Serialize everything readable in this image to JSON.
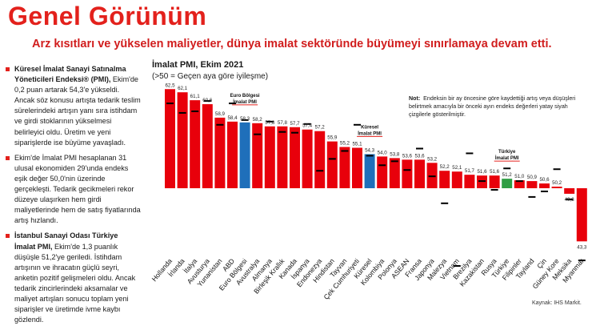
{
  "page": {
    "title": "Genel Görünüm",
    "subtitle": "Arz kısıtları ve yükselen maliyetler, dünya imalat sektöründe büyümeyi sınırlamaya devam etti."
  },
  "bullets": [
    {
      "bold": "Küresel İmalat Sanayi Satınalma Yöneticileri Endeksi® (PMI),",
      "text": " Ekim'de 0,2 puan artarak 54,3'e yükseldi. Ancak söz konusu artışta tedarik teslim sürelerindeki artışın yanı sıra istihdam ve girdi stoklarının yükselmesi belirleyici oldu. Üretim ve yeni siparişlerde ise büyüme yavaşladı."
    },
    {
      "bold": "",
      "text": "Ekim'de İmalat PMI hesaplanan 31 ulusal ekonomiden 29'unda endeks eşik değer 50,0'nin üzerinde gerçekleşti. Tedarik gecikmeleri rekor düzeye ulaşırken hem girdi maliyetlerinde hem de satış fiyatlarında artış hızlandı."
    },
    {
      "bold": "İstanbul Sanayi Odası Türkiye İmalat PMI,",
      "text": " Ekim'de 1,3 puanlık düşüşle 51,2'ye geriledi. İstihdam artışının ve ihracatın güçlü seyri, anketin pozitif gelişmeleri oldu. Ancak tedarik zincirlerindeki aksamalar ve maliyet artışları sonucu toplam yeni siparişler ve üretimde ivme kaybı gözlendi."
    }
  ],
  "note": {
    "label": "Not:",
    "text": "Endeksin bir ay öncesine göre kaydettiği artış veya düşüşleri belirtmek amacıyla bir önceki ayın endeks değerleri yatay siyah çizgilerle gösterilmiştir."
  },
  "source": "Kaynak: IHS Markit.",
  "chart_data": {
    "type": "bar",
    "title": "İmalat PMI, Ekim 2021",
    "subtitle": "(>50 = Geçen aya göre iyileşme)",
    "baseline": 50,
    "ylim": [
      41,
      64
    ],
    "categories": [
      "Hollanda",
      "İrlanda",
      "İtalya",
      "Avusturya",
      "Yunanistan",
      "ABD",
      "Euro Bölgesi",
      "Avustralya",
      "Almanya",
      "Birleşik Krallık",
      "Kanada",
      "İspanya",
      "Endonezya",
      "Hindistan",
      "Tayvan",
      "Çek Cumhuriyeti",
      "Küresel",
      "Kolombiya",
      "Polonya",
      "ASEAN",
      "Fransa",
      "Japonya",
      "Malezya",
      "Vietnam",
      "Brezilya",
      "Kazakistan",
      "Rusya",
      "Türkiye",
      "Filipinler",
      "Tayland",
      "Çin",
      "Güney Kore",
      "Meksika",
      "Myanmar"
    ],
    "values": [
      62.5,
      62.1,
      61.1,
      60.6,
      58.9,
      58.4,
      58.3,
      58.2,
      57.8,
      57.8,
      57.7,
      57.4,
      57.2,
      55.9,
      55.2,
      55.1,
      54.3,
      54.0,
      53.8,
      53.6,
      53.6,
      53.2,
      52.2,
      52.1,
      51.7,
      51.6,
      51.6,
      51.2,
      51.0,
      50.9,
      50.6,
      50.2,
      49.3,
      43.3
    ],
    "value_labels": [
      "62,5",
      "62,1",
      "61,1",
      "60,6",
      "58,9",
      "58,4",
      "58,3",
      "58,2",
      "57,8",
      "57,8",
      "57,7",
      "57,4",
      "57,2",
      "55,9",
      "55,2",
      "55,1",
      "54,3",
      "54,0",
      "53,8",
      "53,6",
      "53,6",
      "53,2",
      "52,2",
      "52,1",
      "51,7",
      "51,6",
      "51,6",
      "51,2",
      "51,0",
      "50,9",
      "50,6",
      "50,2",
      "49,3",
      "43,3"
    ],
    "previous": [
      60.7,
      59.5,
      59.7,
      61.0,
      58.0,
      60.7,
      58.6,
      56.8,
      58.4,
      57.1,
      57.0,
      58.1,
      52.2,
      53.7,
      54.7,
      58.0,
      54.1,
      52.9,
      53.4,
      52.3,
      55.0,
      51.5,
      48.1,
      40.2,
      54.4,
      50.9,
      49.8,
      52.5,
      50.9,
      48.9,
      49.6,
      52.4,
      48.6,
      40.9
    ],
    "highlight_colors": {
      "default": "#e8000b",
      "Euro Bölgesi": "#1f6fba",
      "Küresel": "#1f6fba",
      "Türkiye": "#2f9e44"
    },
    "annotations": [
      {
        "category": "Euro Bölgesi",
        "text": "Euro Bölgesi İmalat PMI"
      },
      {
        "category": "Küresel",
        "text": "Küresel İmalat PMI"
      },
      {
        "category": "Türkiye",
        "text": "Türkiye İmalat PMI"
      }
    ]
  }
}
